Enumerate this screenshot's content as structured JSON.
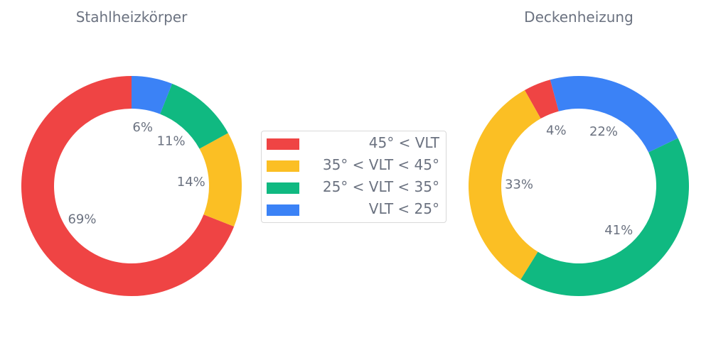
{
  "chart_data": [
    {
      "type": "pie",
      "title": "Stahlheizkörper",
      "categories": [
        "45° < VLT",
        "35° < VLT < 45°",
        "25° < VLT < 35°",
        "VLT < 25°"
      ],
      "values": [
        69,
        14,
        11,
        6
      ],
      "labels": [
        "69%",
        "14%",
        "11%",
        "6%"
      ],
      "colors": [
        "#ef4444",
        "#fbbf24",
        "#10b981",
        "#3b82f6"
      ],
      "donut": true
    },
    {
      "type": "pie",
      "title": "Deckenheizung",
      "categories": [
        "45° < VLT",
        "35° < VLT < 45°",
        "25° < VLT < 35°",
        "VLT < 25°"
      ],
      "values": [
        4,
        33,
        41,
        22
      ],
      "labels": [
        "4%",
        "33%",
        "41%",
        "22%"
      ],
      "colors": [
        "#ef4444",
        "#fbbf24",
        "#10b981",
        "#3b82f6"
      ],
      "donut": true
    }
  ],
  "legend": {
    "items": [
      {
        "label": "45° < VLT",
        "color": "#ef4444"
      },
      {
        "label": "35° < VLT < 45°",
        "color": "#fbbf24"
      },
      {
        "label": "25° < VLT < 35°",
        "color": "#10b981"
      },
      {
        "label": "VLT < 25°",
        "color": "#3b82f6"
      }
    ]
  }
}
